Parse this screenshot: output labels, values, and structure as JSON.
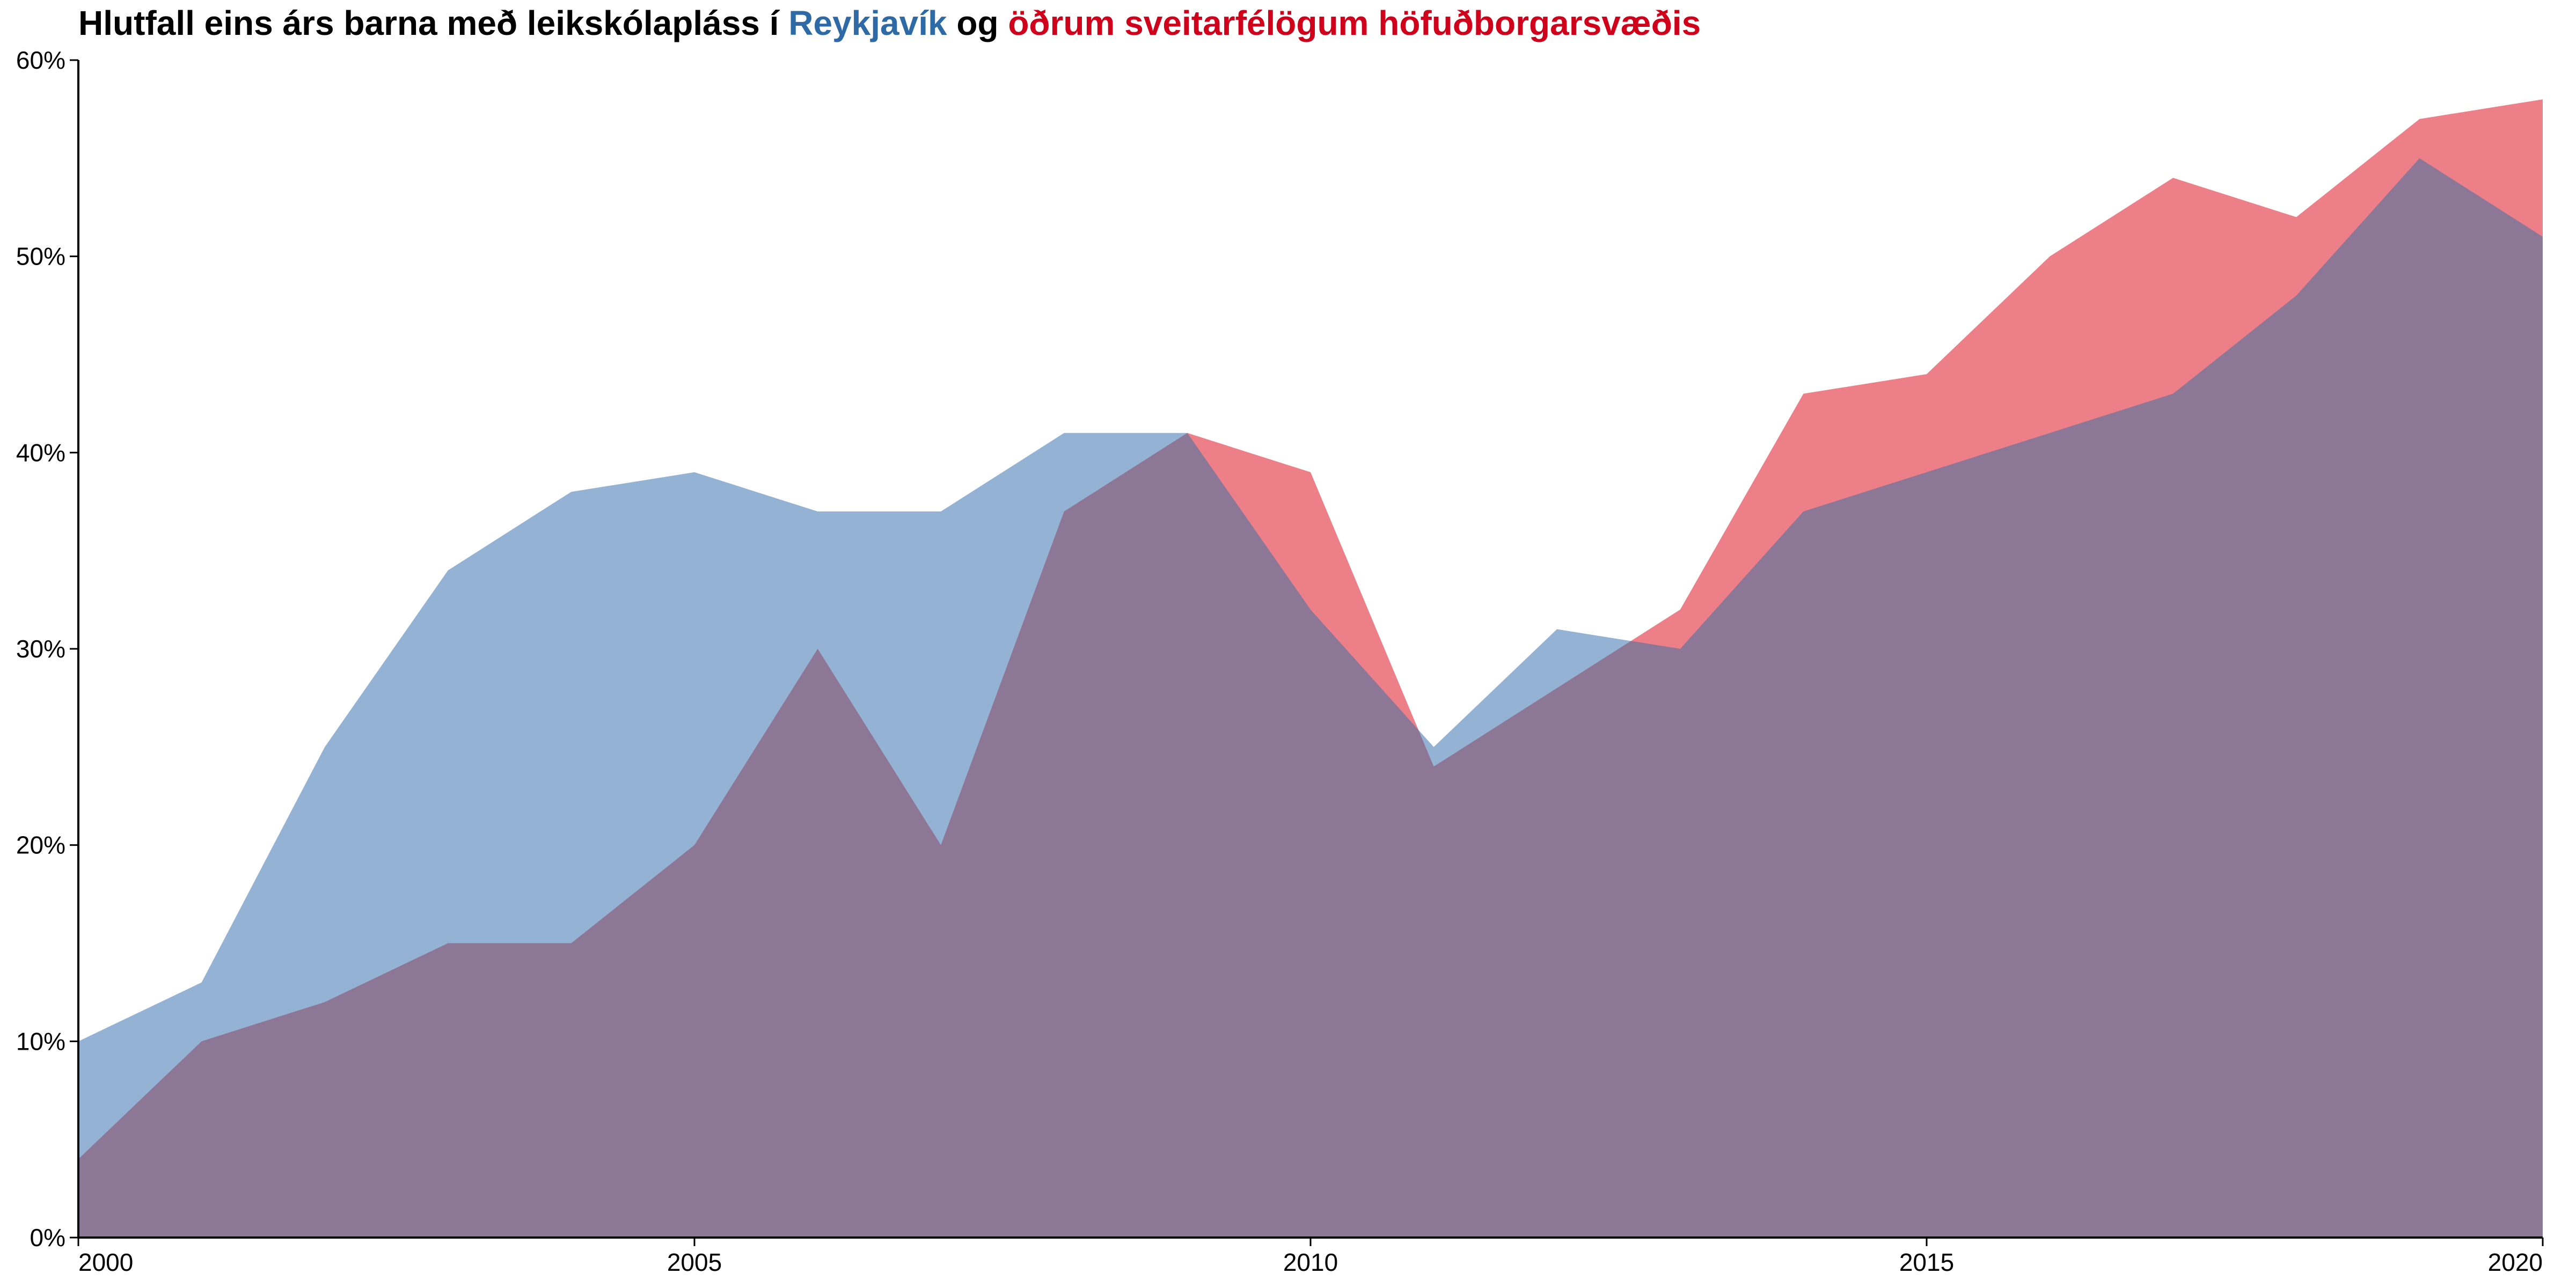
{
  "chart_data": {
    "type": "area",
    "title_parts": [
      {
        "text": "Hlutfall eins árs barna með leikskólapláss í ",
        "color": "#000000"
      },
      {
        "text": "Reykjavík",
        "color": "#2e6aa6"
      },
      {
        "text": " og ",
        "color": "#000000"
      },
      {
        "text": "öðrum sveitarfélögum höfuðborgarsvæðis",
        "color": "#d0021b"
      }
    ],
    "xlabel": "",
    "ylabel": "",
    "x": [
      2000,
      2001,
      2002,
      2003,
      2004,
      2005,
      2006,
      2007,
      2008,
      2009,
      2010,
      2011,
      2012,
      2013,
      2014,
      2015,
      2016,
      2017,
      2018,
      2019,
      2020
    ],
    "xlim": [
      2000,
      2020
    ],
    "ylim": [
      0,
      60
    ],
    "x_ticks": [
      "2000",
      "2005",
      "2010",
      "2015",
      "2020"
    ],
    "y_ticks": [
      "0%",
      "10%",
      "20%",
      "30%",
      "40%",
      "50%",
      "60%"
    ],
    "grid": false,
    "series": [
      {
        "name": "Reykjavík",
        "color": "#94b3d4",
        "values": [
          10,
          13,
          25,
          34,
          38,
          39,
          37,
          37,
          41,
          41,
          32,
          25,
          31,
          30,
          37,
          39,
          41,
          43,
          48,
          55,
          51
        ]
      },
      {
        "name": "öðrum sveitarfélögum höfuðborgarsvæðis",
        "color": "#ed7f89",
        "values": [
          4,
          10,
          12,
          15,
          15,
          20,
          30,
          20,
          37,
          41,
          39,
          24,
          28,
          32,
          43,
          44,
          50,
          54,
          52,
          57,
          58
        ]
      }
    ],
    "overlap_color": "#8c7797"
  }
}
